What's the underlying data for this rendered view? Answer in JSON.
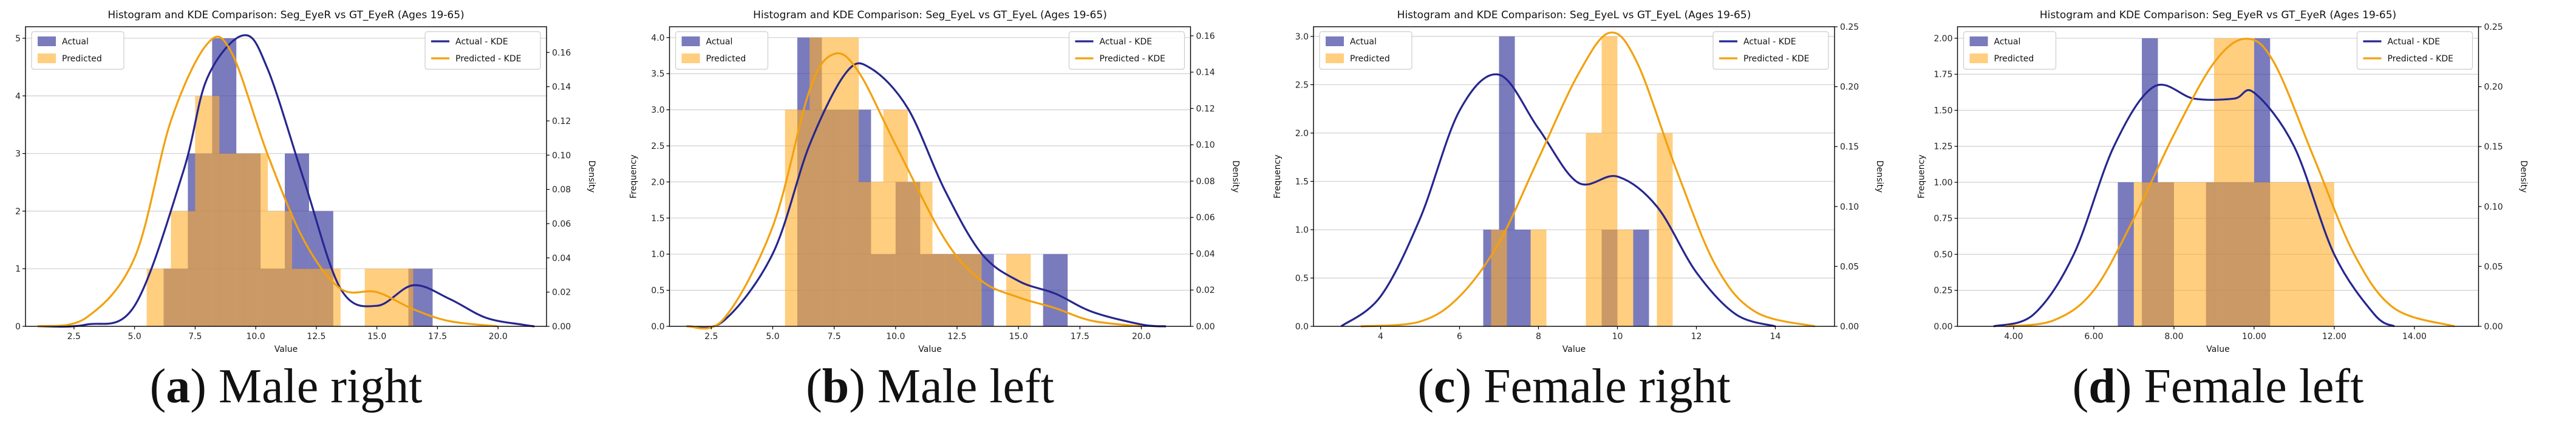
{
  "chart_data": [
    {
      "type": "histogram+kde",
      "title": "Histogram and KDE Comparison: Seg_EyeR vs GT_EyeR (Ages 19-65)",
      "xlabel": "Value",
      "ylabel": "Frequency",
      "y2label": "Density",
      "xlim": [
        0.5,
        22
      ],
      "ylim": [
        0,
        5.2
      ],
      "y2lim": [
        0,
        0.175
      ],
      "xticks": [
        2.5,
        5.0,
        7.5,
        10.0,
        12.5,
        15.0,
        17.5,
        20.0
      ],
      "yticks": [
        0,
        1,
        2,
        3,
        4,
        5
      ],
      "y2ticks": [
        0.0,
        0.02,
        0.04,
        0.06,
        0.08,
        0.1,
        0.12,
        0.14,
        0.16
      ],
      "xtick_decimals": 1,
      "ytick_decimals": 0,
      "y2tick_decimals": 2,
      "grid": true,
      "legend_hist": [
        "Actual",
        "Predicted"
      ],
      "legend_kde": [
        "Actual - KDE",
        "Predicted - KDE"
      ],
      "hist_actual": [
        [
          6.2,
          7.2,
          1
        ],
        [
          7.2,
          8.2,
          3
        ],
        [
          8.2,
          9.2,
          5
        ],
        [
          9.2,
          10.2,
          3
        ],
        [
          10.2,
          11.2,
          1
        ],
        [
          11.2,
          12.2,
          3
        ],
        [
          12.2,
          13.2,
          2
        ],
        [
          16.3,
          17.3,
          1
        ]
      ],
      "hist_predicted": [
        [
          5.5,
          6.5,
          1
        ],
        [
          6.5,
          7.5,
          2
        ],
        [
          7.5,
          8.5,
          4
        ],
        [
          8.5,
          9.5,
          3
        ],
        [
          9.5,
          10.5,
          3
        ],
        [
          10.5,
          11.5,
          2
        ],
        [
          11.5,
          12.5,
          1
        ],
        [
          12.5,
          13.5,
          1
        ],
        [
          14.5,
          15.5,
          1
        ],
        [
          15.5,
          16.5,
          1
        ]
      ],
      "kde_actual": [
        [
          1.0,
          0.0
        ],
        [
          3.0,
          0.001
        ],
        [
          5.0,
          0.012
        ],
        [
          7.0,
          0.09
        ],
        [
          8.0,
          0.145
        ],
        [
          9.5,
          0.17
        ],
        [
          10.5,
          0.15
        ],
        [
          12.0,
          0.085
        ],
        [
          13.5,
          0.022
        ],
        [
          15.0,
          0.012
        ],
        [
          16.5,
          0.024
        ],
        [
          18.0,
          0.016
        ],
        [
          19.5,
          0.005
        ],
        [
          21.0,
          0.001
        ],
        [
          21.5,
          0.0
        ]
      ],
      "kde_predicted": [
        [
          1.0,
          0.0
        ],
        [
          3.0,
          0.005
        ],
        [
          5.0,
          0.04
        ],
        [
          6.5,
          0.12
        ],
        [
          8.0,
          0.165
        ],
        [
          9.0,
          0.16
        ],
        [
          10.5,
          0.1
        ],
        [
          12.0,
          0.05
        ],
        [
          13.5,
          0.022
        ],
        [
          15.0,
          0.02
        ],
        [
          16.5,
          0.01
        ],
        [
          18.0,
          0.003
        ],
        [
          20.0,
          0.0
        ]
      ],
      "caption_letter": "a",
      "caption_text": " Male right"
    },
    {
      "type": "histogram+kde",
      "title": "Histogram and KDE Comparison: Seg_EyeL vs GT_EyeL (Ages 19-65)",
      "xlabel": "Value",
      "ylabel": "Frequency",
      "y2label": "Density",
      "xlim": [
        0.8,
        22
      ],
      "ylim": [
        0,
        4.15
      ],
      "y2lim": [
        0,
        0.165
      ],
      "xticks": [
        2.5,
        5.0,
        7.5,
        10.0,
        12.5,
        15.0,
        17.5,
        20.0
      ],
      "yticks": [
        0.0,
        0.5,
        1.0,
        1.5,
        2.0,
        2.5,
        3.0,
        3.5,
        4.0
      ],
      "y2ticks": [
        0.0,
        0.02,
        0.04,
        0.06,
        0.08,
        0.1,
        0.12,
        0.14,
        0.16
      ],
      "xtick_decimals": 1,
      "ytick_decimals": 1,
      "y2tick_decimals": 2,
      "grid": true,
      "legend_hist": [
        "Actual",
        "Predicted"
      ],
      "legend_kde": [
        "Actual - KDE",
        "Predicted - KDE"
      ],
      "hist_actual": [
        [
          6.0,
          7.0,
          4
        ],
        [
          7.0,
          8.0,
          3
        ],
        [
          8.0,
          9.0,
          3
        ],
        [
          9.0,
          10.0,
          1
        ],
        [
          10.0,
          11.0,
          2
        ],
        [
          11.0,
          12.0,
          1
        ],
        [
          12.0,
          13.0,
          1
        ],
        [
          13.0,
          14.0,
          1
        ],
        [
          16.0,
          17.0,
          1
        ]
      ],
      "hist_predicted": [
        [
          5.5,
          6.5,
          3
        ],
        [
          6.5,
          7.5,
          4
        ],
        [
          7.5,
          8.5,
          4
        ],
        [
          8.5,
          9.5,
          2
        ],
        [
          9.5,
          10.5,
          3
        ],
        [
          10.5,
          11.5,
          2
        ],
        [
          11.5,
          12.5,
          1
        ],
        [
          12.5,
          13.5,
          1
        ],
        [
          14.5,
          15.5,
          1
        ]
      ],
      "kde_actual": [
        [
          1.5,
          0.0
        ],
        [
          3.0,
          0.003
        ],
        [
          5.0,
          0.04
        ],
        [
          6.5,
          0.1
        ],
        [
          8.0,
          0.14
        ],
        [
          9.0,
          0.142
        ],
        [
          10.5,
          0.12
        ],
        [
          12.0,
          0.075
        ],
        [
          13.5,
          0.04
        ],
        [
          15.0,
          0.025
        ],
        [
          16.5,
          0.018
        ],
        [
          18.0,
          0.008
        ],
        [
          20.0,
          0.001
        ],
        [
          21.0,
          0.0
        ]
      ],
      "kde_predicted": [
        [
          1.5,
          0.0
        ],
        [
          3.0,
          0.004
        ],
        [
          5.0,
          0.055
        ],
        [
          6.5,
          0.13
        ],
        [
          7.5,
          0.15
        ],
        [
          8.5,
          0.14
        ],
        [
          10.0,
          0.1
        ],
        [
          12.0,
          0.048
        ],
        [
          13.5,
          0.025
        ],
        [
          15.0,
          0.016
        ],
        [
          16.5,
          0.01
        ],
        [
          18.0,
          0.003
        ],
        [
          20.0,
          0.0
        ]
      ],
      "caption_letter": "b",
      "caption_text": " Male left"
    },
    {
      "type": "histogram+kde",
      "title": "Histogram and KDE Comparison: Seg_EyeL vs GT_EyeL (Ages 19-65)",
      "xlabel": "Value",
      "ylabel": "Frequency",
      "y2label": "Density",
      "xlim": [
        2.3,
        15.5
      ],
      "ylim": [
        0,
        3.1
      ],
      "y2lim": [
        0,
        0.25
      ],
      "xticks": [
        4,
        6,
        8,
        10,
        12,
        14
      ],
      "yticks": [
        0.0,
        0.5,
        1.0,
        1.5,
        2.0,
        2.5,
        3.0
      ],
      "y2ticks": [
        0.0,
        0.05,
        0.1,
        0.15,
        0.2,
        0.25
      ],
      "xtick_decimals": 0,
      "ytick_decimals": 1,
      "y2tick_decimals": 2,
      "grid": true,
      "legend_hist": [
        "Actual",
        "Predicted"
      ],
      "legend_kde": [
        "Actual - KDE",
        "Predicted - KDE"
      ],
      "hist_actual": [
        [
          6.6,
          7.0,
          1
        ],
        [
          7.0,
          7.4,
          3
        ],
        [
          7.4,
          7.8,
          1
        ],
        [
          9.6,
          10.0,
          1
        ],
        [
          10.0,
          10.4,
          0
        ],
        [
          10.4,
          10.8,
          1
        ]
      ],
      "hist_predicted": [
        [
          6.8,
          7.2,
          1
        ],
        [
          7.2,
          7.6,
          0
        ],
        [
          7.8,
          8.2,
          1
        ],
        [
          9.2,
          9.6,
          2
        ],
        [
          9.6,
          10.0,
          3
        ],
        [
          10.0,
          10.4,
          1
        ],
        [
          11.0,
          11.4,
          2
        ]
      ],
      "kde_actual": [
        [
          3.0,
          0.0
        ],
        [
          4.0,
          0.025
        ],
        [
          5.0,
          0.09
        ],
        [
          6.0,
          0.18
        ],
        [
          7.0,
          0.21
        ],
        [
          8.0,
          0.165
        ],
        [
          9.0,
          0.12
        ],
        [
          10.0,
          0.125
        ],
        [
          11.0,
          0.1
        ],
        [
          12.0,
          0.045
        ],
        [
          13.0,
          0.01
        ],
        [
          14.0,
          0.0
        ]
      ],
      "kde_predicted": [
        [
          3.5,
          0.0
        ],
        [
          5.0,
          0.004
        ],
        [
          6.0,
          0.025
        ],
        [
          7.0,
          0.07
        ],
        [
          8.0,
          0.14
        ],
        [
          9.0,
          0.21
        ],
        [
          9.8,
          0.245
        ],
        [
          10.5,
          0.22
        ],
        [
          11.5,
          0.13
        ],
        [
          12.5,
          0.05
        ],
        [
          13.5,
          0.012
        ],
        [
          15.0,
          0.0
        ]
      ],
      "caption_letter": "c",
      "caption_text": " Female right"
    },
    {
      "type": "histogram+kde",
      "title": "Histogram and KDE Comparison: Seg_EyeR vs GT_EyeR (Ages 19-65)",
      "xlabel": "Value",
      "ylabel": "Frequency",
      "y2label": "Density",
      "xlim": [
        2.6,
        15.6
      ],
      "ylim": [
        0,
        2.08
      ],
      "y2lim": [
        0,
        0.25
      ],
      "xticks": [
        4,
        6,
        8,
        10,
        12,
        14
      ],
      "yticks": [
        0.0,
        0.25,
        0.5,
        0.75,
        1.0,
        1.25,
        1.5,
        1.75,
        2.0
      ],
      "y2ticks": [
        0.0,
        0.05,
        0.1,
        0.15,
        0.2,
        0.25
      ],
      "xtick_decimals": 2,
      "ytick_decimals": 2,
      "y2tick_decimals": 2,
      "grid": true,
      "legend_hist": [
        "Actual",
        "Predicted"
      ],
      "legend_kde": [
        "Actual - KDE",
        "Predicted - KDE"
      ],
      "hist_actual": [
        [
          6.6,
          7.0,
          1
        ],
        [
          7.2,
          7.6,
          2
        ],
        [
          7.6,
          8.0,
          1
        ],
        [
          8.8,
          9.2,
          1
        ],
        [
          9.2,
          9.6,
          1
        ],
        [
          9.6,
          10.0,
          1
        ],
        [
          10.0,
          10.4,
          2
        ]
      ],
      "hist_predicted": [
        [
          7.0,
          8.0,
          1
        ],
        [
          8.0,
          9.0,
          1
        ],
        [
          9.0,
          10.0,
          2
        ],
        [
          10.0,
          11.0,
          1
        ],
        [
          11.0,
          12.0,
          1
        ]
      ],
      "kde_actual": [
        [
          3.5,
          0.0
        ],
        [
          4.5,
          0.01
        ],
        [
          5.5,
          0.06
        ],
        [
          6.5,
          0.15
        ],
        [
          7.5,
          0.2
        ],
        [
          8.5,
          0.19
        ],
        [
          9.5,
          0.19
        ],
        [
          10.0,
          0.195
        ],
        [
          11.0,
          0.15
        ],
        [
          12.0,
          0.06
        ],
        [
          13.0,
          0.01
        ],
        [
          13.5,
          0.0
        ]
      ],
      "kde_predicted": [
        [
          3.8,
          0.0
        ],
        [
          5.0,
          0.005
        ],
        [
          6.0,
          0.03
        ],
        [
          7.0,
          0.09
        ],
        [
          8.0,
          0.16
        ],
        [
          9.0,
          0.22
        ],
        [
          9.8,
          0.24
        ],
        [
          10.5,
          0.22
        ],
        [
          11.5,
          0.14
        ],
        [
          12.5,
          0.06
        ],
        [
          13.5,
          0.015
        ],
        [
          15.0,
          0.0
        ]
      ],
      "caption_letter": "d",
      "caption_text": " Female left"
    }
  ],
  "colors": {
    "actual": "#3b3c9e",
    "predicted": "#ffae29",
    "actual_kde": "#26268f",
    "predicted_kde": "#f2a10e",
    "axis": "#000000",
    "grid": "#cfcfcf"
  }
}
